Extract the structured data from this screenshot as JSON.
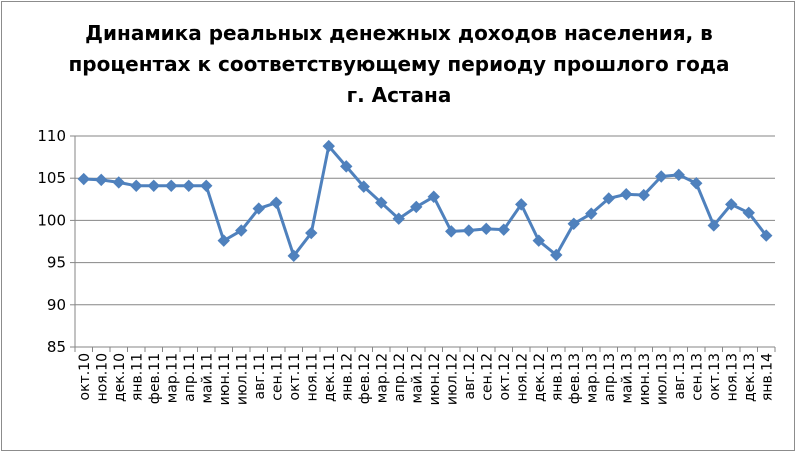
{
  "chart_data": {
    "type": "line",
    "title_lines": [
      "Динамика реальных денежных доходов населения, в",
      "процентах к соответствующему периоду прошлого года",
      "г. Астана"
    ],
    "categories": [
      "окт.10",
      "ноя.10",
      "дек.10",
      "янв.11",
      "фев.11",
      "мар.11",
      "апр.11",
      "май.11",
      "июн.11",
      "июл.11",
      "авг.11",
      "сен.11",
      "окт.11",
      "ноя.11",
      "дек.11",
      "янв.12",
      "фев.12",
      "мар.12",
      "апр.12",
      "май.12",
      "июн.12",
      "июл.12",
      "авг.12",
      "сен.12",
      "окт.12",
      "ноя.12",
      "дек.12",
      "янв.13",
      "фев.13",
      "мар.13",
      "апр.13",
      "май.13",
      "июн.13",
      "июл.13",
      "авг.13",
      "сен.13",
      "окт.13",
      "ноя.13",
      "дек.13",
      "янв.14"
    ],
    "values": [
      104.9,
      104.8,
      104.5,
      104.1,
      104.1,
      104.1,
      104.1,
      104.1,
      97.6,
      98.8,
      101.4,
      102.1,
      95.8,
      98.5,
      108.8,
      106.4,
      104.0,
      102.1,
      100.2,
      101.6,
      102.8,
      98.7,
      98.8,
      99.0,
      98.9,
      101.9,
      97.6,
      95.9,
      99.6,
      100.8,
      102.6,
      103.1,
      103.0,
      105.2,
      105.4,
      104.4,
      99.4,
      101.9,
      100.9,
      98.2
    ],
    "ylim": [
      85,
      110
    ],
    "yticks": [
      85,
      90,
      95,
      100,
      105,
      110
    ],
    "grid": "horizontal",
    "legend": "none",
    "color": "#4f81bd"
  }
}
